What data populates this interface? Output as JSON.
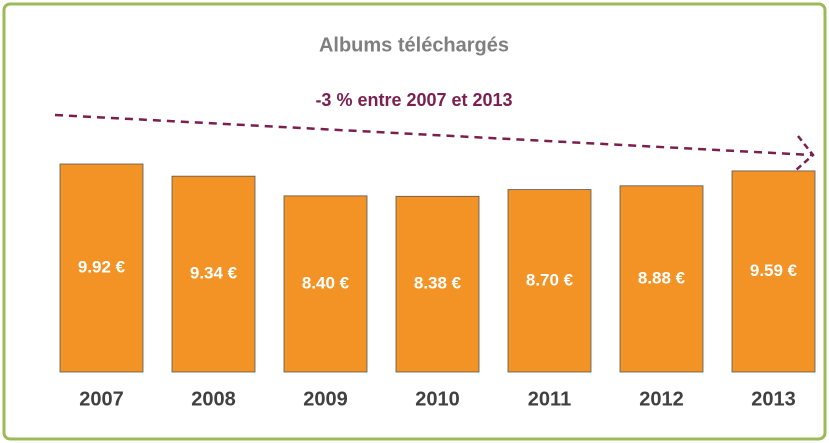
{
  "chart_data": {
    "type": "bar",
    "title": "Albums téléchargés",
    "annotation": "-3 % entre 2007 et 2013",
    "categories": [
      "2007",
      "2008",
      "2009",
      "2010",
      "2011",
      "2012",
      "2013"
    ],
    "values": [
      9.92,
      9.34,
      8.4,
      8.38,
      8.7,
      8.88,
      9.59
    ],
    "value_labels": [
      "9.92 €",
      "9.34 €",
      "8.40 €",
      "8.38 €",
      "8.70 €",
      "8.88 €",
      "9.59 €"
    ],
    "color": "#f39325",
    "grid": false
  }
}
